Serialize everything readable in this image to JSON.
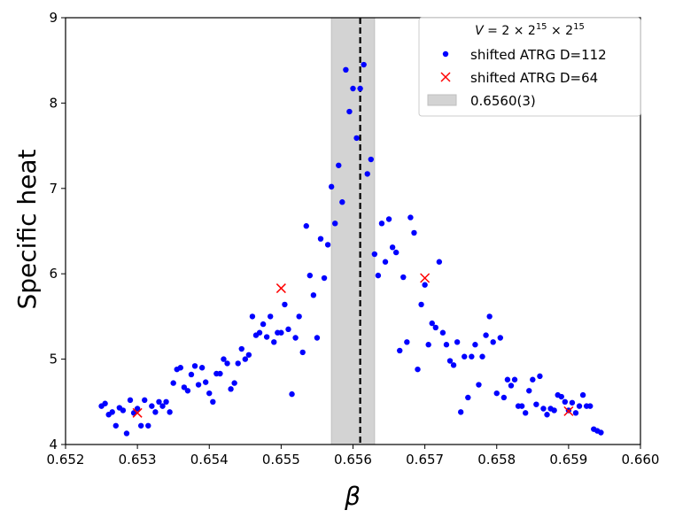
{
  "chart_data": {
    "type": "scatter",
    "xlabel": "β",
    "ylabel": "Specific heat",
    "xlim": [
      0.652,
      0.66
    ],
    "ylim": [
      4,
      9
    ],
    "x_ticks": [
      "0.652",
      "0.653",
      "0.654",
      "0.655",
      "0.656",
      "0.657",
      "0.658",
      "0.659",
      "0.660"
    ],
    "y_ticks": [
      "4",
      "5",
      "6",
      "7",
      "8",
      "9"
    ],
    "grid": false,
    "legend_position": "top-right",
    "legend_title": "V = 2 × 2^15 × 2^15",
    "colors": {
      "d112": "#0000ff",
      "d64": "#ff0000",
      "band": "#d3d3d3",
      "vline": "#000000"
    },
    "band": {
      "name": "0.6560(3)",
      "x_range": [
        0.6557,
        0.6563
      ]
    },
    "vline": {
      "x": 0.6561,
      "style": "dashed"
    },
    "series": [
      {
        "name": "shifted ATRG D=112",
        "marker": "circle",
        "points": [
          [
            0.6525,
            4.45
          ],
          [
            0.65255,
            4.48
          ],
          [
            0.6526,
            4.35
          ],
          [
            0.65265,
            4.38
          ],
          [
            0.6527,
            4.22
          ],
          [
            0.65275,
            4.43
          ],
          [
            0.6528,
            4.4
          ],
          [
            0.65285,
            4.13
          ],
          [
            0.6529,
            4.52
          ],
          [
            0.65295,
            4.37
          ],
          [
            0.653,
            4.42
          ],
          [
            0.65305,
            4.22
          ],
          [
            0.6531,
            4.52
          ],
          [
            0.65315,
            4.22
          ],
          [
            0.6532,
            4.45
          ],
          [
            0.65325,
            4.38
          ],
          [
            0.6533,
            4.5
          ],
          [
            0.65335,
            4.45
          ],
          [
            0.6534,
            4.5
          ],
          [
            0.65345,
            4.38
          ],
          [
            0.6535,
            4.72
          ],
          [
            0.65355,
            4.88
          ],
          [
            0.6536,
            4.9
          ],
          [
            0.65365,
            4.67
          ],
          [
            0.6537,
            4.63
          ],
          [
            0.65375,
            4.82
          ],
          [
            0.6538,
            4.92
          ],
          [
            0.65385,
            4.7
          ],
          [
            0.6539,
            4.9
          ],
          [
            0.65395,
            4.73
          ],
          [
            0.654,
            4.6
          ],
          [
            0.65405,
            4.5
          ],
          [
            0.6541,
            4.83
          ],
          [
            0.65415,
            4.83
          ],
          [
            0.6542,
            5.0
          ],
          [
            0.65425,
            4.95
          ],
          [
            0.6543,
            4.65
          ],
          [
            0.65435,
            4.72
          ],
          [
            0.6544,
            4.95
          ],
          [
            0.65445,
            5.12
          ],
          [
            0.6545,
            5.0
          ],
          [
            0.65455,
            5.05
          ],
          [
            0.6546,
            5.5
          ],
          [
            0.65465,
            5.28
          ],
          [
            0.6547,
            5.31
          ],
          [
            0.65475,
            5.41
          ],
          [
            0.6548,
            5.26
          ],
          [
            0.65485,
            5.5
          ],
          [
            0.6549,
            5.2
          ],
          [
            0.65495,
            5.31
          ],
          [
            0.655,
            5.31
          ],
          [
            0.65505,
            5.64
          ],
          [
            0.6551,
            5.35
          ],
          [
            0.65515,
            4.59
          ],
          [
            0.6552,
            5.25
          ],
          [
            0.65525,
            5.5
          ],
          [
            0.6553,
            5.08
          ],
          [
            0.65535,
            6.56
          ],
          [
            0.6554,
            5.98
          ],
          [
            0.65545,
            5.75
          ],
          [
            0.6555,
            5.25
          ],
          [
            0.65555,
            6.41
          ],
          [
            0.6556,
            5.95
          ],
          [
            0.65565,
            6.34
          ],
          [
            0.6557,
            7.02
          ],
          [
            0.65575,
            6.59
          ],
          [
            0.6558,
            7.27
          ],
          [
            0.65585,
            6.84
          ],
          [
            0.6559,
            8.39
          ],
          [
            0.65595,
            7.9
          ],
          [
            0.656,
            8.17
          ],
          [
            0.65605,
            7.59
          ],
          [
            0.6561,
            8.17
          ],
          [
            0.65615,
            8.45
          ],
          [
            0.6562,
            7.17
          ],
          [
            0.65625,
            7.34
          ],
          [
            0.6563,
            6.23
          ],
          [
            0.65635,
            5.98
          ],
          [
            0.6564,
            6.59
          ],
          [
            0.65645,
            6.14
          ],
          [
            0.6565,
            6.64
          ],
          [
            0.65655,
            6.31
          ],
          [
            0.6566,
            6.25
          ],
          [
            0.65665,
            5.1
          ],
          [
            0.6567,
            5.96
          ],
          [
            0.65675,
            5.2
          ],
          [
            0.6568,
            6.66
          ],
          [
            0.65685,
            6.48
          ],
          [
            0.6569,
            4.88
          ],
          [
            0.65695,
            5.64
          ],
          [
            0.657,
            5.87
          ],
          [
            0.65705,
            5.17
          ],
          [
            0.6571,
            5.42
          ],
          [
            0.65715,
            5.37
          ],
          [
            0.6572,
            6.14
          ],
          [
            0.65725,
            5.31
          ],
          [
            0.6573,
            5.17
          ],
          [
            0.65735,
            4.98
          ],
          [
            0.6574,
            4.93
          ],
          [
            0.65745,
            5.2
          ],
          [
            0.6575,
            4.38
          ],
          [
            0.65755,
            5.03
          ],
          [
            0.6576,
            4.55
          ],
          [
            0.65765,
            5.03
          ],
          [
            0.6577,
            5.17
          ],
          [
            0.65775,
            4.7
          ],
          [
            0.6578,
            5.03
          ],
          [
            0.65785,
            5.28
          ],
          [
            0.6579,
            5.5
          ],
          [
            0.65795,
            5.2
          ],
          [
            0.658,
            4.6
          ],
          [
            0.65805,
            5.25
          ],
          [
            0.6581,
            4.55
          ],
          [
            0.65815,
            4.76
          ],
          [
            0.6582,
            4.69
          ],
          [
            0.65825,
            4.76
          ],
          [
            0.6583,
            4.45
          ],
          [
            0.65835,
            4.45
          ],
          [
            0.6584,
            4.37
          ],
          [
            0.65845,
            4.63
          ],
          [
            0.6585,
            4.76
          ],
          [
            0.65855,
            4.47
          ],
          [
            0.6586,
            4.8
          ],
          [
            0.65865,
            4.42
          ],
          [
            0.6587,
            4.35
          ],
          [
            0.65875,
            4.42
          ],
          [
            0.6588,
            4.4
          ],
          [
            0.65885,
            4.58
          ],
          [
            0.6589,
            4.56
          ],
          [
            0.65895,
            4.5
          ],
          [
            0.659,
            4.4
          ],
          [
            0.65905,
            4.49
          ],
          [
            0.6591,
            4.37
          ],
          [
            0.65915,
            4.45
          ],
          [
            0.6592,
            4.58
          ],
          [
            0.65925,
            4.45
          ],
          [
            0.6593,
            4.45
          ],
          [
            0.65935,
            4.18
          ],
          [
            0.6594,
            4.16
          ],
          [
            0.65945,
            4.14
          ]
        ]
      },
      {
        "name": "shifted ATRG D=64",
        "marker": "x",
        "points": [
          [
            0.653,
            4.37
          ],
          [
            0.655,
            5.83
          ],
          [
            0.657,
            5.95
          ],
          [
            0.659,
            4.39
          ]
        ]
      }
    ]
  }
}
